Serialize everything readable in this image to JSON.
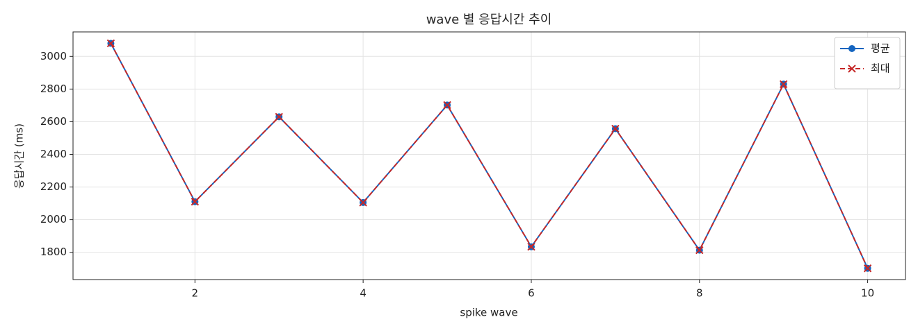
{
  "chart_data": {
    "type": "line",
    "title": "wave 별 응답시간 추이",
    "xlabel": "spike wave",
    "ylabel": "응답시간 (ms)",
    "x": [
      1,
      2,
      3,
      4,
      5,
      6,
      7,
      8,
      9,
      10
    ],
    "series": [
      {
        "name": "평균",
        "color": "#1565c0",
        "marker": "circle",
        "dash": false,
        "values": [
          3080,
          2110,
          2630,
          2105,
          2702,
          1834,
          2557,
          1813,
          2830,
          1702
        ]
      },
      {
        "name": "최대",
        "color": "#c62828",
        "marker": "x",
        "dash": true,
        "values": [
          3080,
          2110,
          2630,
          2105,
          2702,
          1834,
          2557,
          1813,
          2830,
          1702
        ]
      }
    ],
    "xlim": [
      0.55,
      10.45
    ],
    "xticks": [
      2,
      4,
      6,
      8,
      10
    ],
    "ylim": [
      1633,
      3150
    ],
    "yticks": [
      1800,
      2000,
      2200,
      2400,
      2600,
      2800,
      3000
    ],
    "grid": true,
    "legend": "upper right"
  }
}
